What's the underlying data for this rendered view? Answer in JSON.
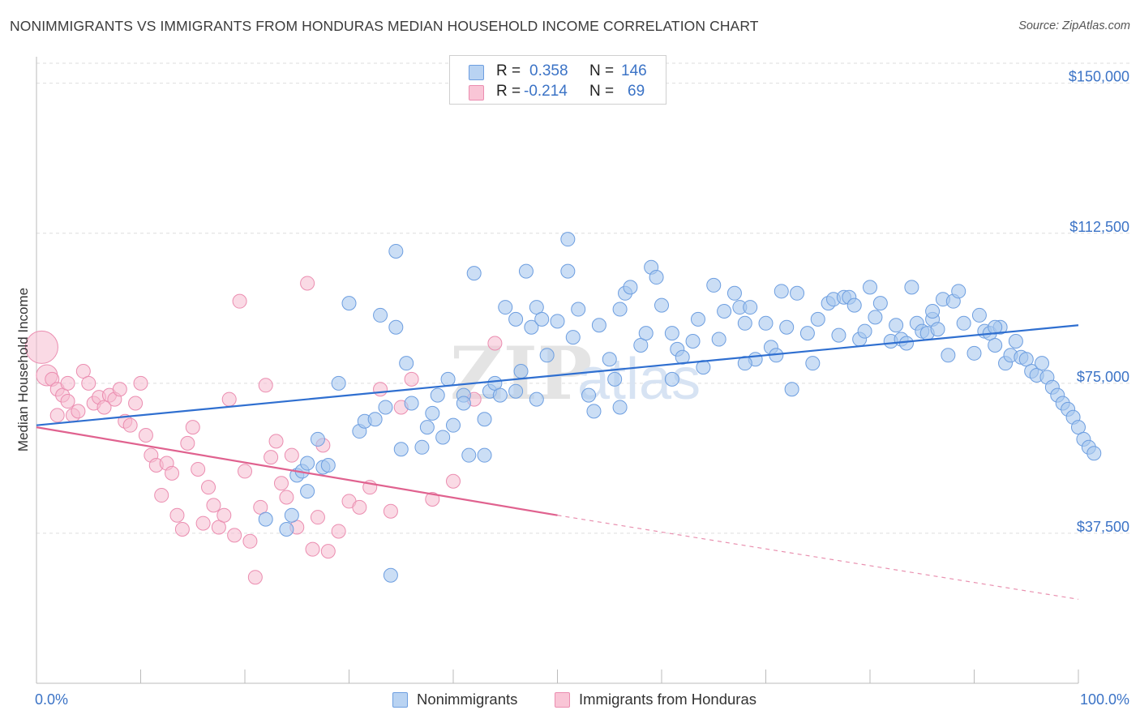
{
  "title": "NONIMMIGRANTS VS IMMIGRANTS FROM HONDURAS MEDIAN HOUSEHOLD INCOME CORRELATION CHART",
  "source": "Source: ZipAtlas.com",
  "watermark": {
    "zip": "ZIP",
    "atlas": "atlas"
  },
  "colors": {
    "blue": "#3b73c6",
    "blue_line": "#2f6fd0",
    "blue_fill": "#a9c8ef",
    "blue_stroke": "#6d9ee0",
    "pink_line": "#e0628f",
    "pink_fill": "#f6bcd0",
    "pink_stroke": "#eb8db0"
  },
  "legend": {
    "r_label": "R =",
    "n_label": "N =",
    "series": [
      {
        "r": "0.358",
        "n": "146"
      },
      {
        "r": "-0.214",
        "n": "69"
      }
    ]
  },
  "bottom_legend": [
    "Nonimmigrants",
    "Immigrants from Honduras"
  ],
  "chart_data": {
    "type": "scatter",
    "title": "NONIMMIGRANTS VS IMMIGRANTS FROM HONDURAS MEDIAN HOUSEHOLD INCOME CORRELATION CHART",
    "xlabel": "",
    "ylabel": "Median Household Income",
    "xlim": [
      0,
      100
    ],
    "ylim": [
      0,
      155000
    ],
    "x_tick_labels": [
      "0.0%",
      "100.0%"
    ],
    "y_ticks": [
      37500,
      75000,
      112500,
      150000
    ],
    "y_tick_labels": [
      "$37,500",
      "$75,000",
      "$112,500",
      "$150,000"
    ],
    "grid": true,
    "series": [
      {
        "name": "Nonimmigrants",
        "r": 0.358,
        "n": 146,
        "trend": {
          "x": [
            0,
            100
          ],
          "y": [
            64500,
            89500
          ],
          "style": "solid"
        },
        "points": [
          [
            22,
            41000
          ],
          [
            24,
            38500
          ],
          [
            24.5,
            42000
          ],
          [
            25,
            52000
          ],
          [
            25.5,
            53000
          ],
          [
            26,
            55000
          ],
          [
            26,
            48000
          ],
          [
            27,
            61000
          ],
          [
            27.5,
            54000
          ],
          [
            28,
            54500
          ],
          [
            29,
            75000
          ],
          [
            30,
            95000
          ],
          [
            31,
            63000
          ],
          [
            31.5,
            65500
          ],
          [
            32.5,
            66000
          ],
          [
            33.5,
            69000
          ],
          [
            34,
            27000
          ],
          [
            34.5,
            89000
          ],
          [
            34.5,
            108000
          ],
          [
            35,
            58500
          ],
          [
            35.5,
            80000
          ],
          [
            36,
            70000
          ],
          [
            37,
            59000
          ],
          [
            37.5,
            64000
          ],
          [
            38,
            67500
          ],
          [
            38.5,
            72000
          ],
          [
            39,
            61500
          ],
          [
            39.5,
            76000
          ],
          [
            40,
            64500
          ],
          [
            41,
            72000
          ],
          [
            41.5,
            57000
          ],
          [
            42,
            102500
          ],
          [
            43,
            66000
          ],
          [
            43.5,
            73000
          ],
          [
            44,
            75000
          ],
          [
            44.5,
            72000
          ],
          [
            45,
            94000
          ],
          [
            46,
            91000
          ],
          [
            46.5,
            78000
          ],
          [
            47,
            103000
          ],
          [
            47.5,
            89000
          ],
          [
            48,
            94000
          ],
          [
            48.5,
            91000
          ],
          [
            49,
            82000
          ],
          [
            50,
            90500
          ],
          [
            51,
            111000
          ],
          [
            51,
            103000
          ],
          [
            51.5,
            86500
          ],
          [
            52,
            93500
          ],
          [
            53,
            72000
          ],
          [
            53.5,
            68000
          ],
          [
            54,
            89500
          ],
          [
            55,
            81000
          ],
          [
            55.5,
            76000
          ],
          [
            56,
            93500
          ],
          [
            56.5,
            97500
          ],
          [
            57,
            99000
          ],
          [
            58,
            84500
          ],
          [
            58.5,
            87500
          ],
          [
            59,
            104000
          ],
          [
            59.5,
            101500
          ],
          [
            60,
            94500
          ],
          [
            61,
            76000
          ],
          [
            61.5,
            83500
          ],
          [
            62,
            81500
          ],
          [
            63,
            85500
          ],
          [
            63.5,
            91000
          ],
          [
            64,
            79000
          ],
          [
            65,
            99500
          ],
          [
            65.5,
            86000
          ],
          [
            66,
            93000
          ],
          [
            67,
            97500
          ],
          [
            67.5,
            94000
          ],
          [
            68,
            90000
          ],
          [
            68.5,
            94000
          ],
          [
            69,
            81000
          ],
          [
            70,
            90000
          ],
          [
            70.5,
            84000
          ],
          [
            71,
            82000
          ],
          [
            71.5,
            98000
          ],
          [
            72,
            89000
          ],
          [
            72.5,
            73500
          ],
          [
            73,
            97500
          ],
          [
            74,
            87500
          ],
          [
            74.5,
            80000
          ],
          [
            75,
            91000
          ],
          [
            76,
            95000
          ],
          [
            76.5,
            96000
          ],
          [
            77,
            87000
          ],
          [
            77.5,
            96500
          ],
          [
            78,
            96500
          ],
          [
            78.5,
            94500
          ],
          [
            79,
            86000
          ],
          [
            79.5,
            88000
          ],
          [
            80,
            99000
          ],
          [
            80.5,
            91500
          ],
          [
            81,
            95000
          ],
          [
            82,
            85500
          ],
          [
            82.5,
            89500
          ],
          [
            83,
            86000
          ],
          [
            83.5,
            85000
          ],
          [
            84,
            99000
          ],
          [
            84.5,
            90000
          ],
          [
            85,
            88000
          ],
          [
            85.5,
            87500
          ],
          [
            86,
            91000
          ],
          [
            86.5,
            88500
          ],
          [
            87,
            96000
          ],
          [
            87.5,
            82000
          ],
          [
            88,
            95500
          ],
          [
            88.5,
            98000
          ],
          [
            89,
            90000
          ],
          [
            90,
            82500
          ],
          [
            90.5,
            92000
          ],
          [
            91,
            88000
          ],
          [
            91.5,
            87500
          ],
          [
            92,
            84500
          ],
          [
            92.5,
            89000
          ],
          [
            93,
            80000
          ],
          [
            93.5,
            82000
          ],
          [
            94,
            85500
          ],
          [
            94.5,
            81500
          ],
          [
            95,
            81000
          ],
          [
            95.5,
            78000
          ],
          [
            96,
            77000
          ],
          [
            96.5,
            80000
          ],
          [
            97,
            76500
          ],
          [
            97.5,
            74000
          ],
          [
            98,
            72000
          ],
          [
            98.5,
            70000
          ],
          [
            99,
            68500
          ],
          [
            99.5,
            66500
          ],
          [
            100,
            64000
          ],
          [
            100.5,
            61000
          ],
          [
            101,
            59000
          ],
          [
            101.5,
            57500
          ],
          [
            61,
            87500
          ],
          [
            33,
            92000
          ],
          [
            43,
            57000
          ],
          [
            41,
            70000
          ],
          [
            46,
            73000
          ],
          [
            48,
            71000
          ],
          [
            56,
            69000
          ],
          [
            68,
            80000
          ],
          [
            86,
            93000
          ],
          [
            92,
            89000
          ]
        ]
      },
      {
        "name": "Immigrants from Honduras",
        "r": -0.214,
        "n": 69,
        "trend": {
          "x": [
            0,
            50,
            100
          ],
          "y": [
            64000,
            42000,
            21000
          ],
          "style": "solid until x=50 then dashed"
        },
        "points": [
          [
            0.5,
            84000
          ],
          [
            1,
            77000
          ],
          [
            1.5,
            76000
          ],
          [
            2,
            73500
          ],
          [
            2.5,
            72000
          ],
          [
            3,
            70500
          ],
          [
            3.5,
            67000
          ],
          [
            4,
            68000
          ],
          [
            4.5,
            78000
          ],
          [
            5,
            75000
          ],
          [
            5.5,
            70000
          ],
          [
            6,
            71500
          ],
          [
            6.5,
            69000
          ],
          [
            7,
            72000
          ],
          [
            7.5,
            71000
          ],
          [
            8,
            73500
          ],
          [
            8.5,
            65500
          ],
          [
            9,
            64500
          ],
          [
            9.5,
            70000
          ],
          [
            10,
            75000
          ],
          [
            10.5,
            62000
          ],
          [
            11,
            57000
          ],
          [
            11.5,
            54500
          ],
          [
            12,
            47000
          ],
          [
            12.5,
            55000
          ],
          [
            13,
            52500
          ],
          [
            13.5,
            42000
          ],
          [
            14,
            38500
          ],
          [
            14.5,
            60000
          ],
          [
            15,
            64000
          ],
          [
            15.5,
            53500
          ],
          [
            16,
            40000
          ],
          [
            16.5,
            49000
          ],
          [
            17,
            44500
          ],
          [
            17.5,
            39000
          ],
          [
            18,
            42000
          ],
          [
            18.5,
            71000
          ],
          [
            19,
            37000
          ],
          [
            19.5,
            95500
          ],
          [
            20,
            53000
          ],
          [
            20.5,
            35500
          ],
          [
            21,
            26500
          ],
          [
            21.5,
            44000
          ],
          [
            22,
            74500
          ],
          [
            22.5,
            56500
          ],
          [
            23,
            60500
          ],
          [
            23.5,
            50000
          ],
          [
            24,
            46500
          ],
          [
            24.5,
            57000
          ],
          [
            25,
            39000
          ],
          [
            26,
            100000
          ],
          [
            26.5,
            33500
          ],
          [
            27,
            41500
          ],
          [
            27.5,
            59500
          ],
          [
            28,
            33000
          ],
          [
            29,
            38000
          ],
          [
            30,
            45500
          ],
          [
            31,
            44000
          ],
          [
            32,
            49000
          ],
          [
            33,
            73500
          ],
          [
            34,
            43000
          ],
          [
            35,
            69000
          ],
          [
            36,
            76000
          ],
          [
            38,
            46000
          ],
          [
            40,
            50500
          ],
          [
            42,
            71000
          ],
          [
            44,
            85000
          ],
          [
            2,
            67000
          ],
          [
            3,
            75000
          ]
        ]
      }
    ]
  }
}
